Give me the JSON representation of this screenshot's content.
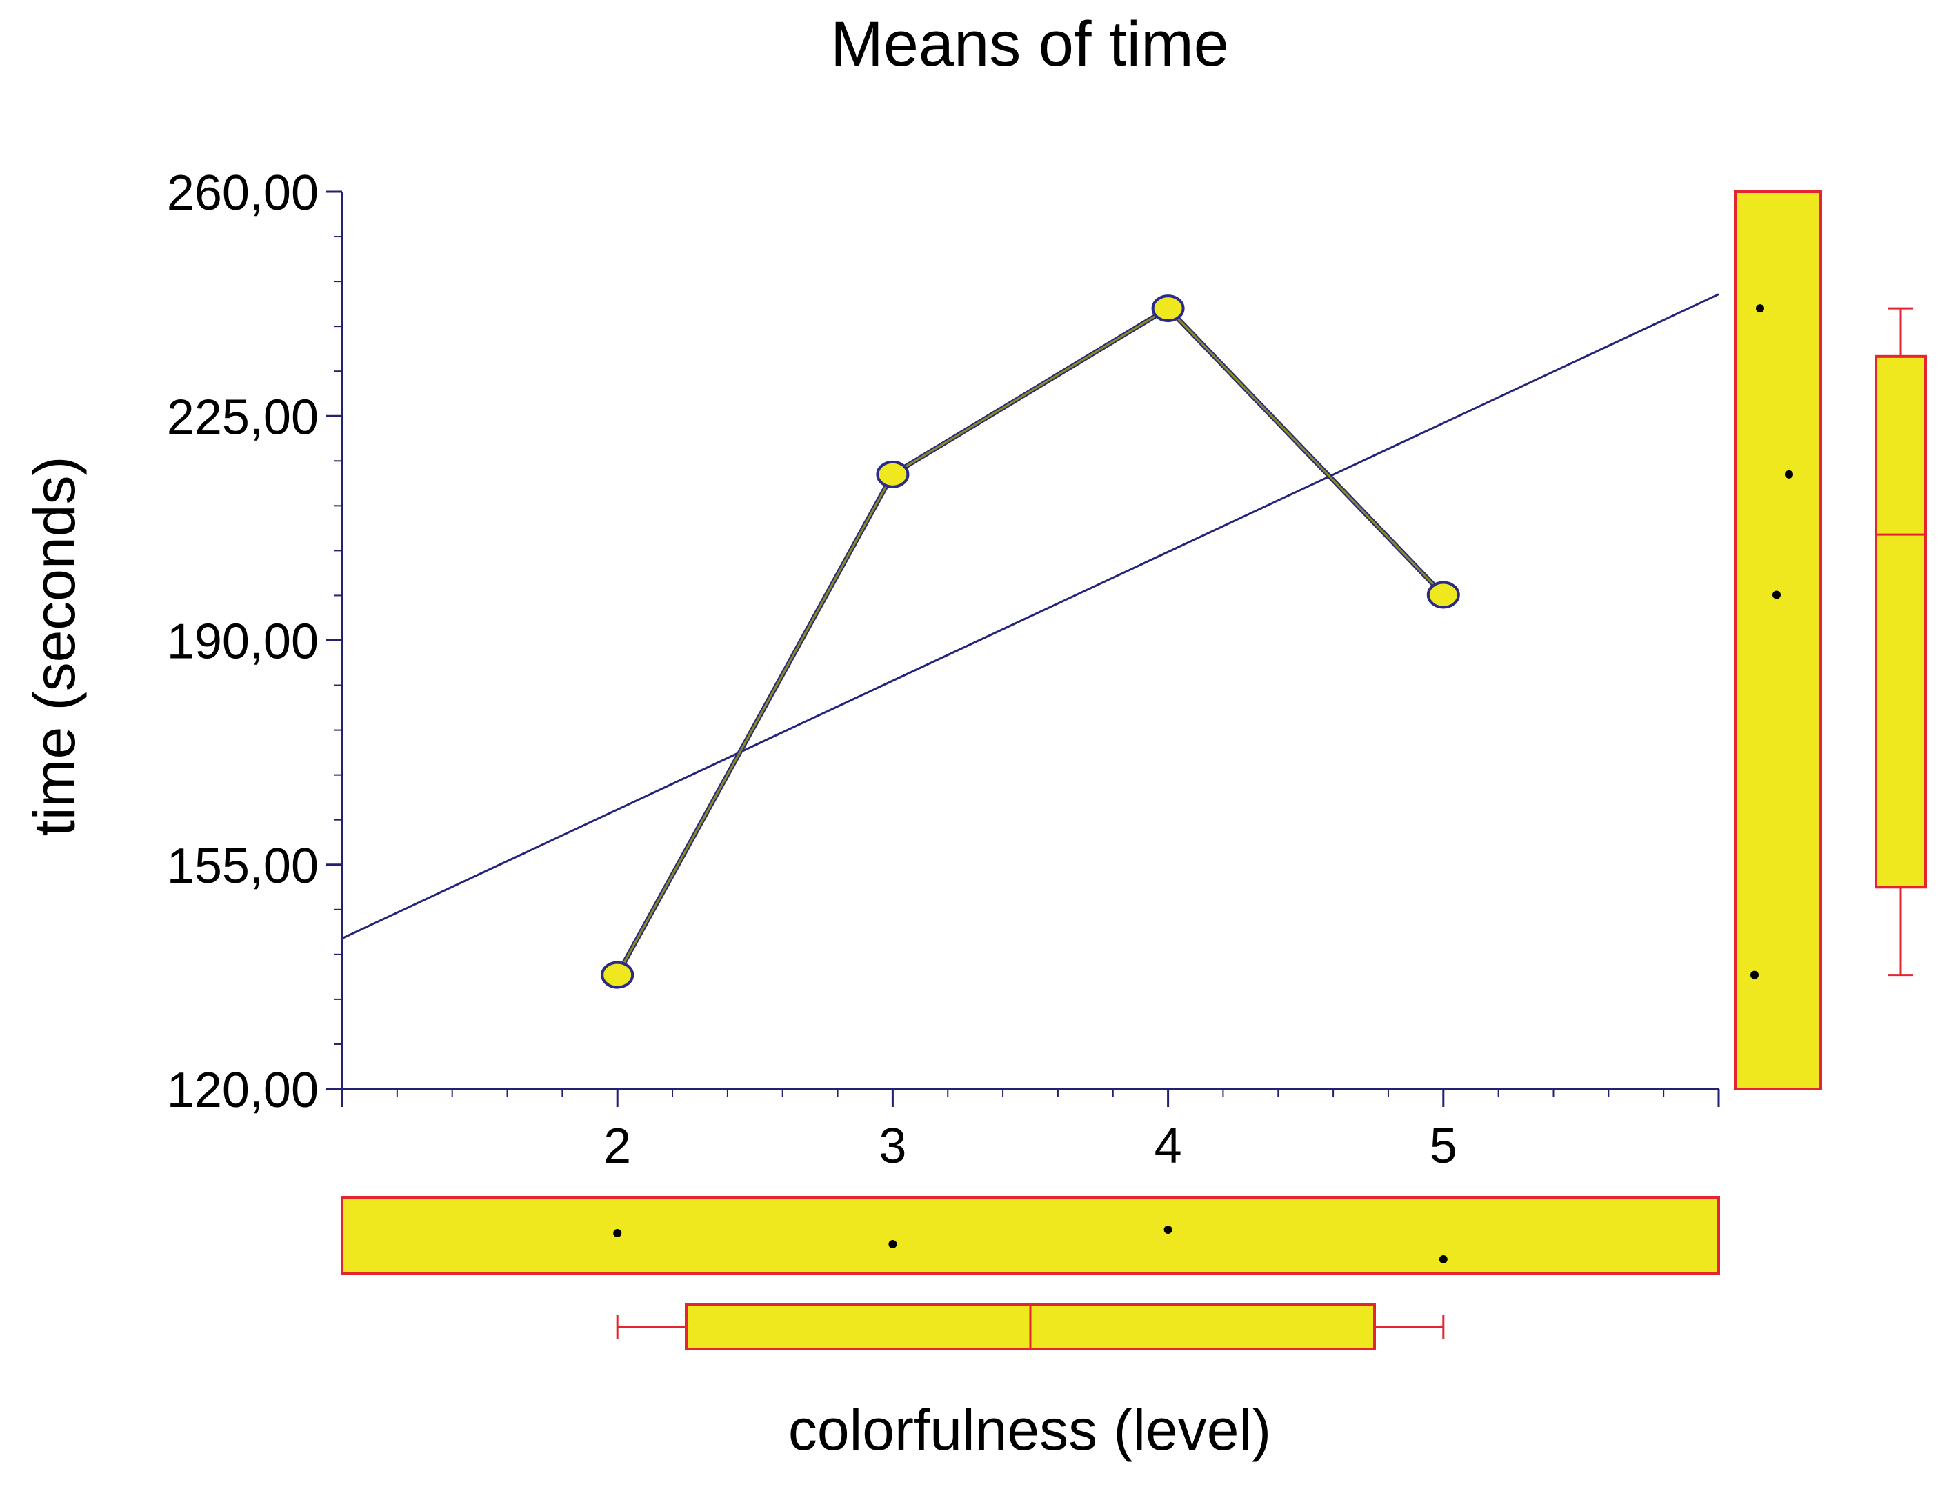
{
  "chart_data": {
    "type": "line",
    "title": "Means of time",
    "xlabel": "colorfulness (level)",
    "ylabel": "time (seconds)",
    "categories": [
      "2",
      "3",
      "4",
      "5"
    ],
    "x": [
      2,
      3,
      4,
      5
    ],
    "series": [
      {
        "name": "Means of time",
        "values": [
          137.8,
          215.9,
          241.8,
          197.1
        ]
      }
    ],
    "trend_line": {
      "name": "linear fit",
      "slope": 20.1,
      "intercept": 123.4
    },
    "xlim": [
      1,
      6
    ],
    "ylim": [
      120,
      260
    ],
    "y_ticks": [
      120,
      155,
      190,
      225,
      260
    ],
    "y_tick_labels": [
      "120,00",
      "155,00",
      "190,00",
      "225,00",
      "260,00"
    ],
    "x_ticks": [
      2,
      3,
      4,
      5
    ],
    "x_tick_labels": [
      "2",
      "3",
      "4",
      "5"
    ],
    "y_box": {
      "min": 137.8,
      "q1": 151.5,
      "median": 206.5,
      "q3": 234.3,
      "max": 241.8
    },
    "x_box": {
      "min": 2,
      "q1": 2.25,
      "median": 3.5,
      "q3": 4.75,
      "max": 5
    },
    "grid": false,
    "legend": "none"
  },
  "colors": {
    "axis": "#22226e",
    "trend": "#24247a",
    "series_line": "#8a8a22",
    "series_line_edge": "#2a2a7a",
    "marker_fill": "#f0e81e",
    "marker_edge": "#2a2a8a",
    "box_fill": "#f0e81e",
    "box_edge": "#e4242e",
    "jitter_dot": "#000000"
  }
}
